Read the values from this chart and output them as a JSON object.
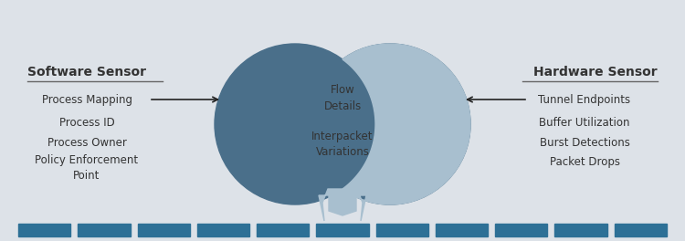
{
  "bg_color": "#dde2e8",
  "circle_dark": "#4a6f8a",
  "overlap_light": "#a8bfcf",
  "arrow_light": "#aabfce",
  "bar_color": "#2d7096",
  "title_left": "Software Sensor",
  "title_right": "Hardware Sensor",
  "left_items": [
    "Process Mapping",
    "Process ID",
    "Process Owner",
    "Policy Enforcement\nPoint"
  ],
  "right_items": [
    "Tunnel Endpoints",
    "Buffer Utilization",
    "Burst Detections",
    "Packet Drops"
  ],
  "center_text1": "Flow\nDetails",
  "center_text2": "Interpacket\nVariations",
  "text_color_center": "#333333",
  "text_color_side": "#333333",
  "n_bars": 11,
  "font_size_title": 10,
  "font_size_items": 8.5,
  "font_size_center": 8.5
}
